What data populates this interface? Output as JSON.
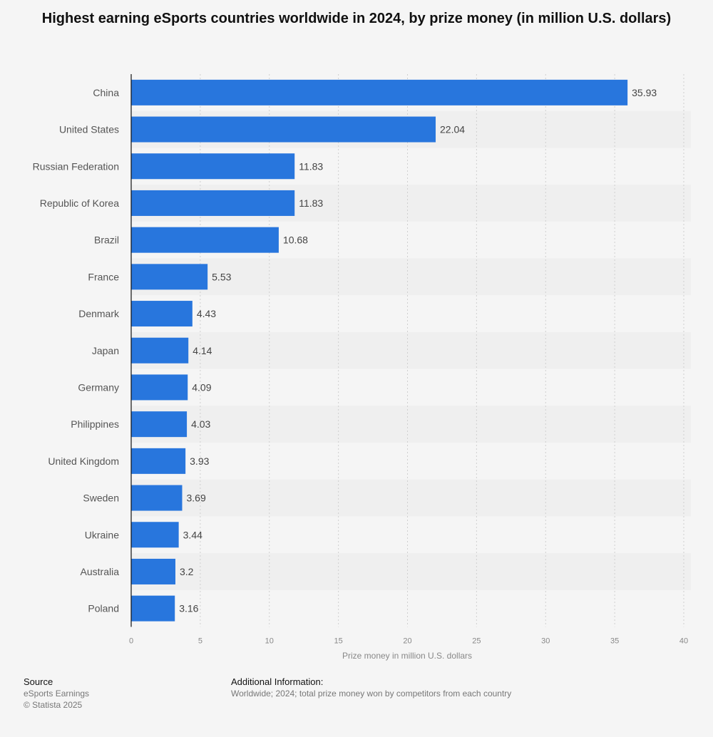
{
  "chart_data": {
    "type": "bar",
    "orientation": "horizontal",
    "title": "Highest earning eSports countries worldwide in 2024, by prize money (in million U.S. dollars)",
    "xlabel": "Prize money in million U.S. dollars",
    "ylabel": "",
    "xlim": [
      0,
      40
    ],
    "xticks": [
      "0",
      "5",
      "10",
      "15",
      "20",
      "25",
      "30",
      "35",
      "40"
    ],
    "grid": true,
    "bar_color": "#2876dd",
    "categories": [
      "China",
      "United States",
      "Russian Federation",
      "Republic of Korea",
      "Brazil",
      "France",
      "Denmark",
      "Japan",
      "Germany",
      "Philippines",
      "United Kingdom",
      "Sweden",
      "Ukraine",
      "Australia",
      "Poland"
    ],
    "values": [
      35.93,
      22.04,
      11.83,
      11.83,
      10.68,
      5.53,
      4.43,
      4.14,
      4.09,
      4.03,
      3.93,
      3.69,
      3.44,
      3.2,
      3.16
    ],
    "value_labels": [
      "35.93",
      "22.04",
      "11.83",
      "11.83",
      "10.68",
      "5.53",
      "4.43",
      "4.14",
      "4.09",
      "4.03",
      "3.93",
      "3.69",
      "3.44",
      "3.2",
      "3.16"
    ]
  },
  "footer": {
    "source_heading": "Source",
    "source_name": "eSports Earnings",
    "copyright": "© Statista 2025",
    "info_heading": "Additional Information:",
    "info_text": "Worldwide; 2024; total prize money won by competitors from each country"
  }
}
